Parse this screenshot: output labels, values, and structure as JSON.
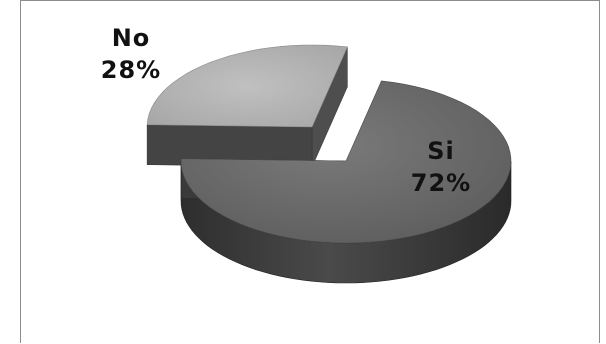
{
  "chart_data": {
    "type": "pie",
    "style": "3d-exploded",
    "slices": [
      {
        "label": "Si",
        "value": 72,
        "value_label": "72%",
        "color": "#6e6e6e",
        "side_color": "#3f3f3f"
      },
      {
        "label": "No",
        "value": 28,
        "value_label": "28%",
        "color": "#b4b4b4",
        "side_color": "#555555"
      }
    ],
    "legend": "none"
  }
}
